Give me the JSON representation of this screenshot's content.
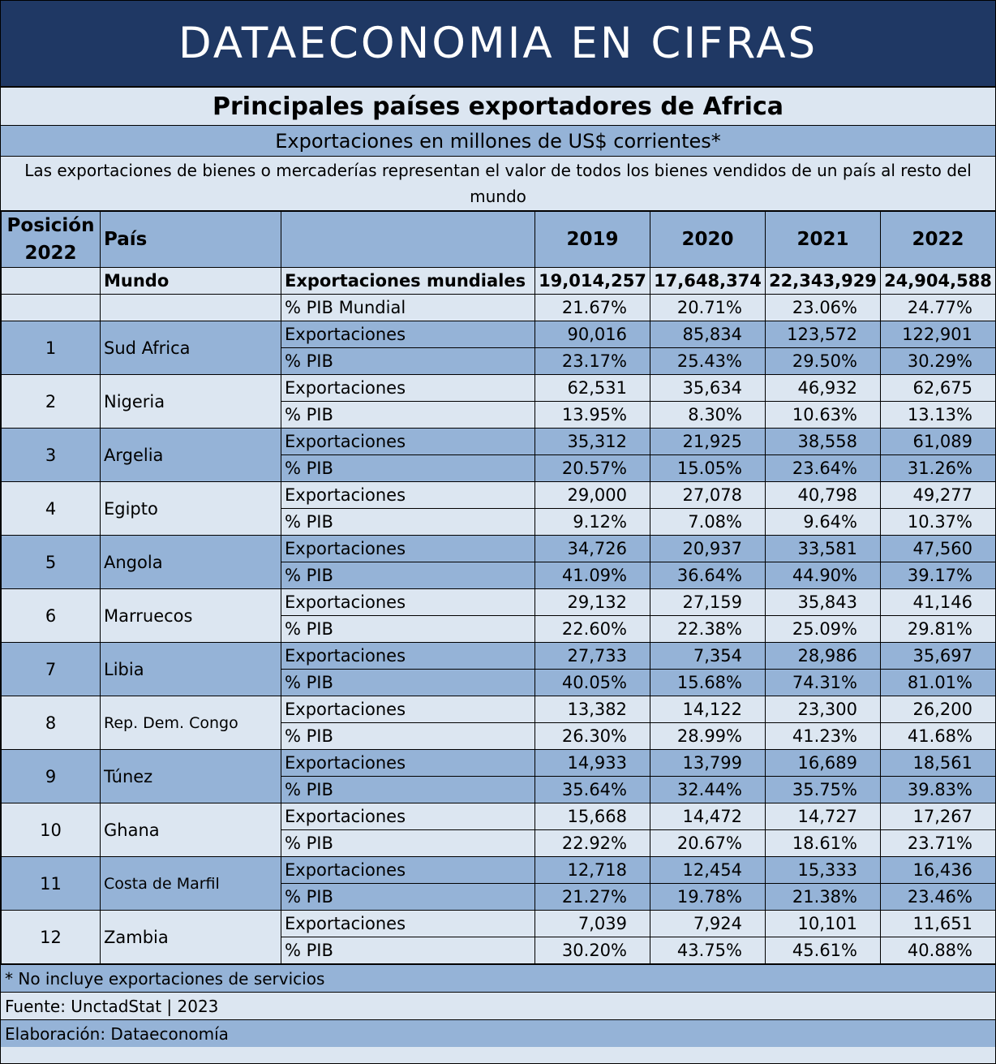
{
  "banner": "DATAECONOMIA EN CIFRAS",
  "title": "Principales países exportadores de Africa",
  "subtitle": "Exportaciones en millones de US$ corrientes*",
  "description": "Las exportaciones de bienes o mercaderías representan el valor de todos los bienes vendidos de un país al resto del mundo",
  "header": {
    "position": "Posición 2022",
    "country": "País",
    "years": [
      "2019",
      "2020",
      "2021",
      "2022"
    ]
  },
  "world": {
    "name": "Mundo",
    "row1_label": "Exportaciones mundiales",
    "row1_values": [
      "19,014,257",
      "17,648,374",
      "22,343,929",
      "24,904,588"
    ],
    "row2_label": "% PIB Mundial",
    "row2_values": [
      "21.67%",
      "20.71%",
      "23.06%",
      "24.77%"
    ]
  },
  "labels": {
    "exports": "Exportaciones",
    "gdp": "% PIB"
  },
  "countries": [
    {
      "pos": "1",
      "name": "Sud Africa",
      "exports": [
        "90,016",
        "85,834",
        "123,572",
        "122,901"
      ],
      "gdp": [
        "23.17%",
        "25.43%",
        "29.50%",
        "30.29%"
      ]
    },
    {
      "pos": "2",
      "name": "Nigeria",
      "exports": [
        "62,531",
        "35,634",
        "46,932",
        "62,675"
      ],
      "gdp": [
        "13.95%",
        "8.30%",
        "10.63%",
        "13.13%"
      ]
    },
    {
      "pos": "3",
      "name": "Argelia",
      "exports": [
        "35,312",
        "21,925",
        "38,558",
        "61,089"
      ],
      "gdp": [
        "20.57%",
        "15.05%",
        "23.64%",
        "31.26%"
      ]
    },
    {
      "pos": "4",
      "name": "Egipto",
      "exports": [
        "29,000",
        "27,078",
        "40,798",
        "49,277"
      ],
      "gdp": [
        "9.12%",
        "7.08%",
        "9.64%",
        "10.37%"
      ]
    },
    {
      "pos": "5",
      "name": "Angola",
      "exports": [
        "34,726",
        "20,937",
        "33,581",
        "47,560"
      ],
      "gdp": [
        "41.09%",
        "36.64%",
        "44.90%",
        "39.17%"
      ]
    },
    {
      "pos": "6",
      "name": "Marruecos",
      "exports": [
        "29,132",
        "27,159",
        "35,843",
        "41,146"
      ],
      "gdp": [
        "22.60%",
        "22.38%",
        "25.09%",
        "29.81%"
      ]
    },
    {
      "pos": "7",
      "name": "Libia",
      "exports": [
        "27,733",
        "7,354",
        "28,986",
        "35,697"
      ],
      "gdp": [
        "40.05%",
        "15.68%",
        "74.31%",
        "81.01%"
      ]
    },
    {
      "pos": "8",
      "name": "Rep. Dem. Congo",
      "exports": [
        "13,382",
        "14,122",
        "23,300",
        "26,200"
      ],
      "gdp": [
        "26.30%",
        "28.99%",
        "41.23%",
        "41.68%"
      ]
    },
    {
      "pos": "9",
      "name": "Túnez",
      "exports": [
        "14,933",
        "13,799",
        "16,689",
        "18,561"
      ],
      "gdp": [
        "35.64%",
        "32.44%",
        "35.75%",
        "39.83%"
      ]
    },
    {
      "pos": "10",
      "name": "Ghana",
      "exports": [
        "15,668",
        "14,472",
        "14,727",
        "17,267"
      ],
      "gdp": [
        "22.92%",
        "20.67%",
        "18.61%",
        "23.71%"
      ]
    },
    {
      "pos": "11",
      "name": "Costa de Marfil",
      "exports": [
        "12,718",
        "12,454",
        "15,333",
        "16,436"
      ],
      "gdp": [
        "21.27%",
        "19.78%",
        "21.38%",
        "23.46%"
      ]
    },
    {
      "pos": "12",
      "name": "Zambia",
      "exports": [
        "7,039",
        "7,924",
        "10,101",
        "11,651"
      ],
      "gdp": [
        "30.20%",
        "43.75%",
        "45.61%",
        "40.88%"
      ]
    }
  ],
  "footer": {
    "note": "* No incluye exportaciones de servicios",
    "source": "Fuente: UnctadStat | 2023",
    "credit": "Elaboración: Dataeconomía"
  },
  "colors": {
    "banner": "#1f3864",
    "dark_row": "#95b3d7",
    "light_row": "#dce6f1"
  }
}
